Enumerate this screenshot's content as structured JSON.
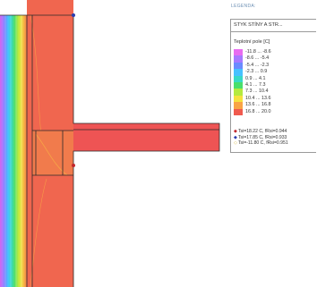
{
  "legend": {
    "title": "LEGENDA:",
    "header": "STYK STÍNY A STR...",
    "subtitle": "Teplotní pole [C]",
    "ranges": [
      {
        "label": "-11.8 ... -8.6",
        "color": "#e86cf0"
      },
      {
        "label": "-8.6 ... -5.4",
        "color": "#a779ff"
      },
      {
        "label": "-5.4 ... -2.3",
        "color": "#6a8bff"
      },
      {
        "label": "-2.3 ... 0.9",
        "color": "#47c1ff"
      },
      {
        "label": "0.9 ... 4.1",
        "color": "#39d9c6"
      },
      {
        "label": "4.1 ... 7.3",
        "color": "#49df6c"
      },
      {
        "label": "7.3 ... 10.4",
        "color": "#b4ea3f"
      },
      {
        "label": "10.4 ... 13.6",
        "color": "#f4e23f"
      },
      {
        "label": "13.6 ... 16.8",
        "color": "#f9a445"
      },
      {
        "label": "16.8 ... 20.0",
        "color": "#f05a4e"
      }
    ],
    "markers": [
      {
        "symbol": "◆",
        "color": "#c0272d",
        "label": "Tsi=18.22 C, fRsi=0.944"
      },
      {
        "symbol": "◆",
        "color": "#2a3db0",
        "label": "Tsi=17.85 C, fRsi=0.933"
      },
      {
        "symbol": "◇",
        "color": "#d8b84a",
        "label": "Tsi=-11.80 C, fRsi=0.951"
      }
    ]
  },
  "colors": {
    "main_fill": "#f0664f",
    "beam_fill": "#ee5454",
    "outline": "#2a2a2a"
  }
}
